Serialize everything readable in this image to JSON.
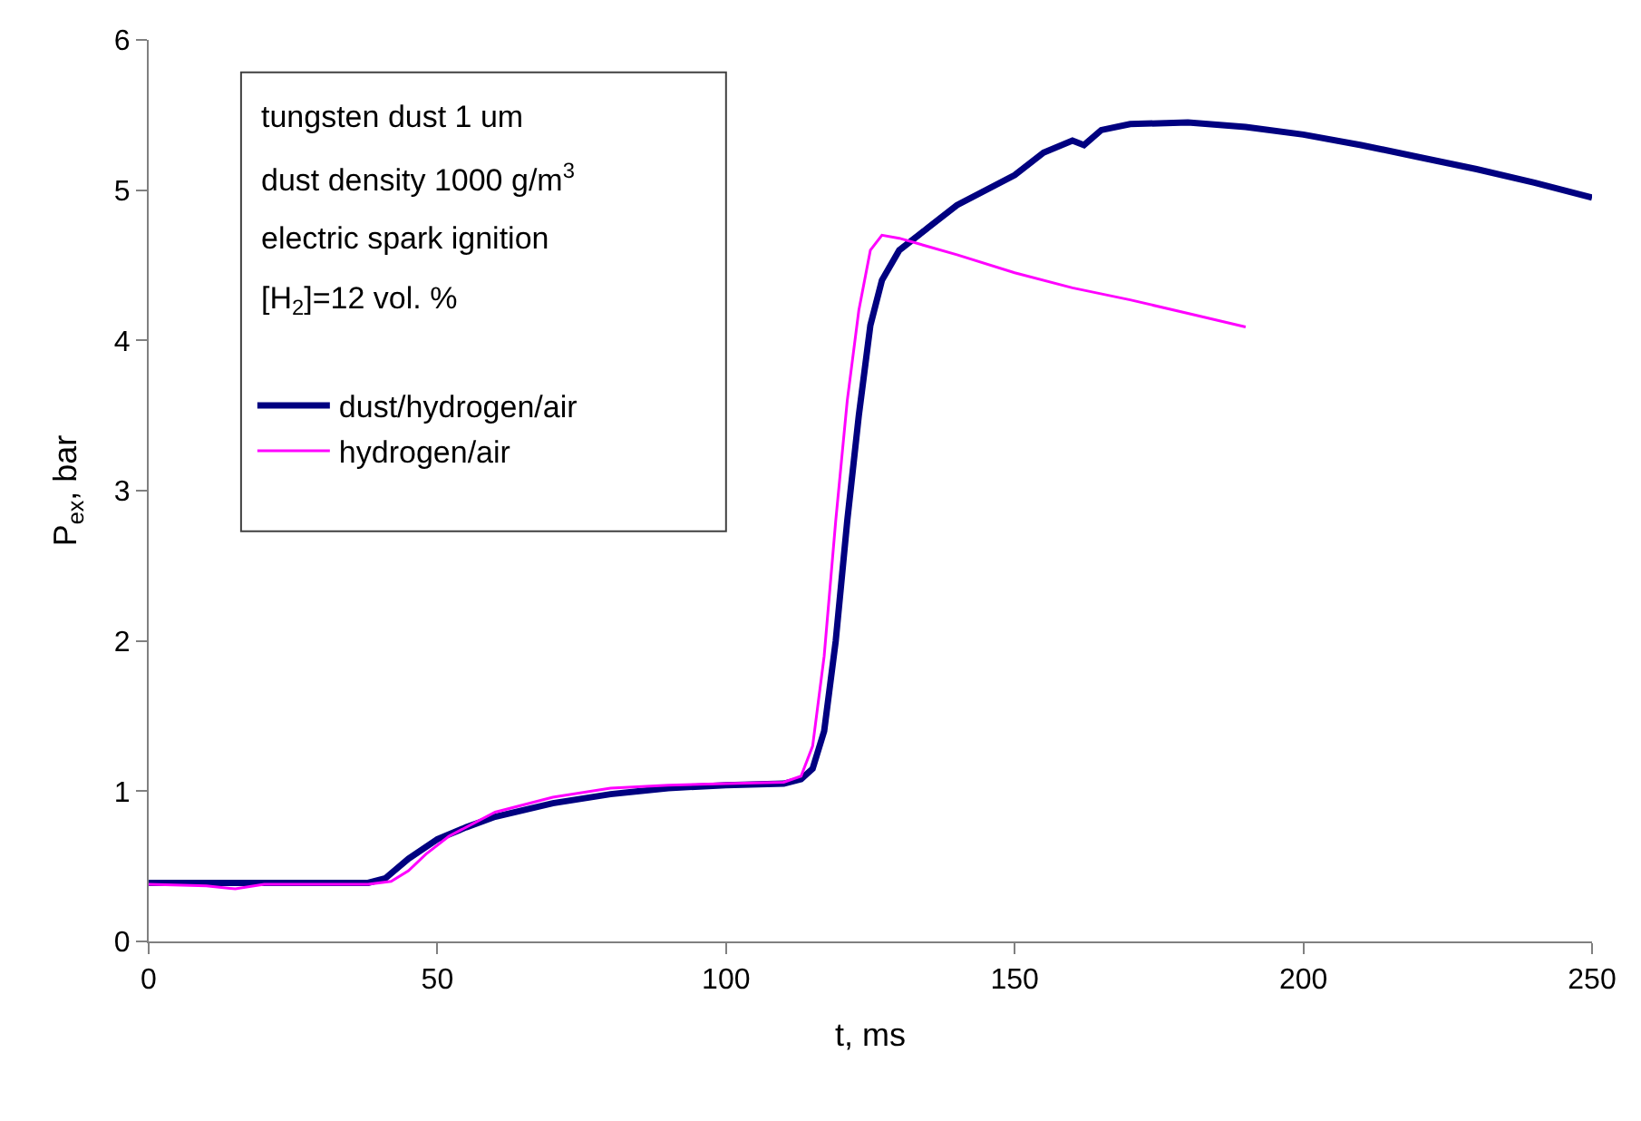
{
  "chart_data": {
    "type": "line",
    "xlabel": "t, ms",
    "ylabel": "P$_{ex}$, bar",
    "annotations": [
      "tungsten dust 1 um",
      "dust density 1000 g/m$^{3}$",
      "electric spark ignition",
      "[H$_{2}$]=12 vol. %"
    ],
    "xlim": [
      0,
      250
    ],
    "xticks": [
      0,
      50,
      100,
      150,
      200,
      250
    ],
    "ylim": [
      0,
      6
    ],
    "yticks": [
      0,
      1,
      2,
      3,
      4,
      5,
      6
    ],
    "grid": false,
    "legend": "top left",
    "marker": "none",
    "line_style": "solid",
    "series": [
      {
        "name": "dust/hydrogen/air",
        "color": "#000080",
        "x": [
          0,
          20,
          38,
          41,
          45,
          50,
          55,
          60,
          70,
          80,
          90,
          100,
          110,
          113,
          115,
          117,
          119,
          121,
          123,
          125,
          127,
          130,
          135,
          140,
          150,
          155,
          160,
          162,
          165,
          170,
          180,
          190,
          200,
          210,
          220,
          230,
          240,
          250
        ],
        "values": [
          0.39,
          0.39,
          0.39,
          0.42,
          0.55,
          0.68,
          0.76,
          0.83,
          0.92,
          0.98,
          1.02,
          1.04,
          1.05,
          1.08,
          1.15,
          1.4,
          2.0,
          2.8,
          3.5,
          4.1,
          4.4,
          4.6,
          4.75,
          4.9,
          5.1,
          5.25,
          5.33,
          5.3,
          5.4,
          5.44,
          5.45,
          5.42,
          5.37,
          5.3,
          5.22,
          5.14,
          5.05,
          4.95
        ]
      },
      {
        "name": "hydrogen/air",
        "color": "#ff00ff",
        "x": [
          0,
          10,
          15,
          20,
          38,
          42,
          45,
          48,
          52,
          60,
          70,
          80,
          90,
          100,
          110,
          113,
          115,
          117,
          119,
          121,
          123,
          125,
          127,
          130,
          140,
          150,
          160,
          170,
          180,
          190
        ],
        "values": [
          0.38,
          0.37,
          0.35,
          0.38,
          0.38,
          0.4,
          0.47,
          0.58,
          0.7,
          0.86,
          0.96,
          1.02,
          1.04,
          1.05,
          1.06,
          1.1,
          1.3,
          1.9,
          2.8,
          3.6,
          4.2,
          4.6,
          4.7,
          4.68,
          4.57,
          4.45,
          4.35,
          4.27,
          4.18,
          4.09
        ]
      }
    ]
  }
}
